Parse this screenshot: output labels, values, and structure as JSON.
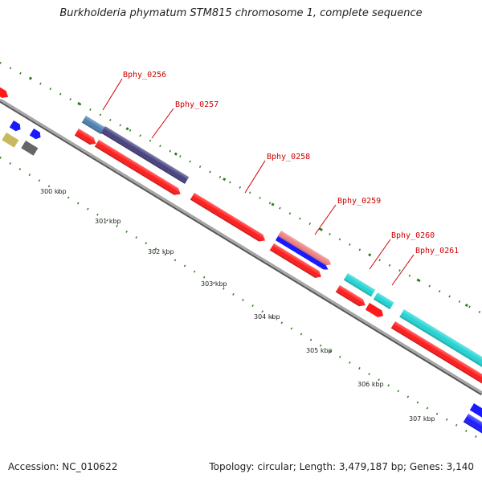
{
  "title": "Burkholderia phymatum STM815 chromosome 1, complete sequence",
  "footer": {
    "accession": "Accession: NC_010622",
    "topology": "Topology: circular; Length: 3,479,187 bp; Genes: 3,140"
  },
  "scale": {
    "labels": [
      "300 kbp",
      "301 kbp",
      "302 kbp",
      "303 kbp",
      "304 kbp",
      "305 kbp",
      "306 kbp",
      "307 kbp"
    ]
  },
  "genes": [
    {
      "name": "Bphy_0256"
    },
    {
      "name": "Bphy_0257"
    },
    {
      "name": "Bphy_0258"
    },
    {
      "name": "Bphy_0259"
    },
    {
      "name": "Bphy_0260"
    },
    {
      "name": "Bphy_0261"
    }
  ],
  "colors": {
    "backbone": "#888888",
    "tick": "#2e7d1e",
    "label": "#cc0000",
    "forward_cds": "#ff1a1a",
    "cyan": "#22d3d3",
    "steel_blue": "#4a7fb0",
    "dark_slate": "#45407f",
    "salmon": "#f08080",
    "blue": "#1a1aff",
    "khaki": "#c8b860",
    "grey": "#666666"
  }
}
